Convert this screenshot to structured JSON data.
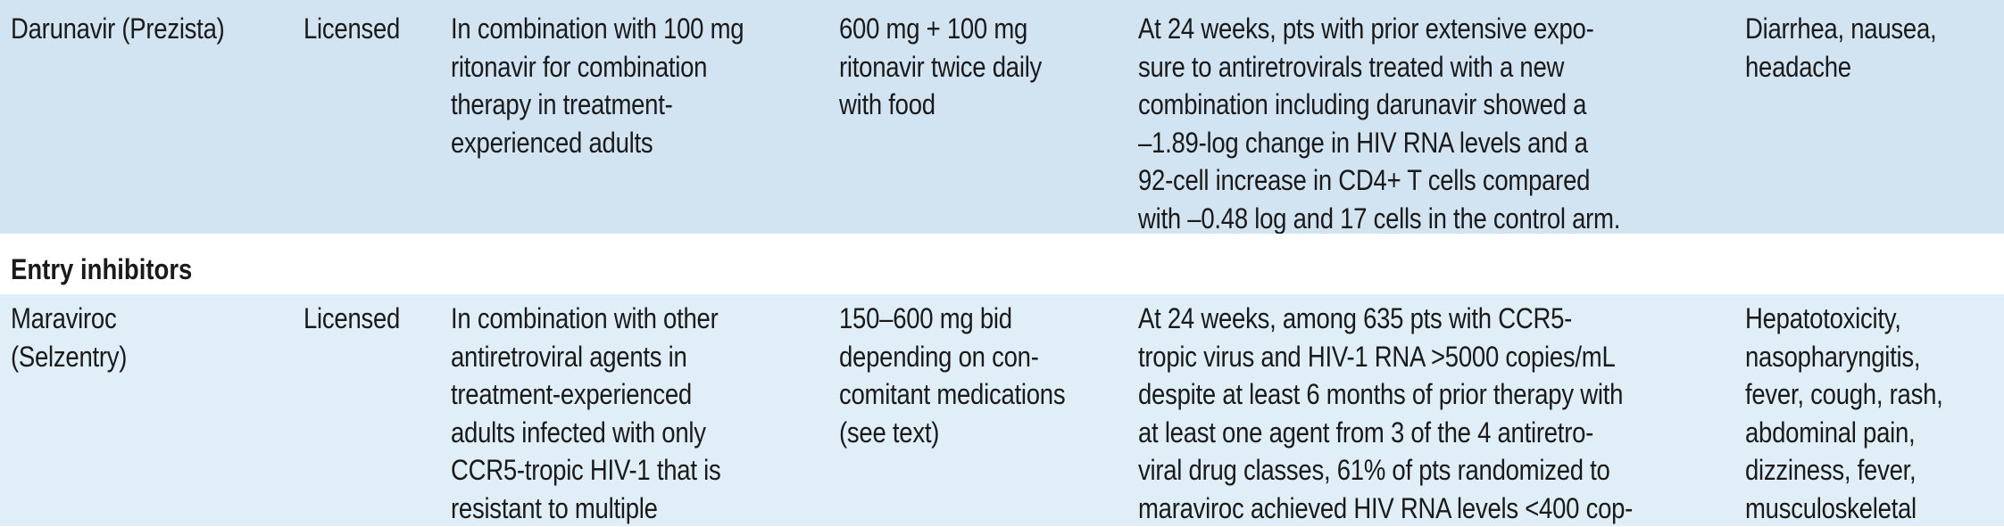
{
  "rows": [
    {
      "drug": "Darunavir (Prezista)",
      "status": "Licensed",
      "indication": "In combination with 100 mg\nritonavir for combination\ntherapy in treatment-\nexperienced adults",
      "dosage": "600 mg + 100 mg\nritonavir twice daily\nwith food",
      "efficacy": "At 24 weeks, pts with prior extensive expo-\nsure to antiretrovirals treated with a new\ncombination including darunavir showed a\n–1.89-log change in HIV RNA levels and a\n92-cell increase in CD4+ T cells compared\nwith –0.48 log and 17 cells in the control arm.",
      "adverse_effects": "Diarrhea, nausea,\nheadache"
    },
    {
      "drug": "Maraviroc\n(Selzentry)",
      "status": "Licensed",
      "indication": "In combination with other\nantiretroviral agents in\ntreatment-experienced\nadults infected with only\nCCR5-tropic HIV-1 that is\nresistant to multiple",
      "dosage": "150–600 mg bid\ndepending on con-\ncomitant medications\n(see text)",
      "efficacy": "At 24 weeks, among 635 pts with CCR5-\ntropic virus and HIV-1 RNA >5000 copies/mL\ndespite at least 6 months of prior therapy with\nat least one agent from 3 of the 4 antiretro-\nviral drug classes, 61% of pts randomized to\nmaraviroc achieved HIV RNA levels <400 cop-",
      "adverse_effects": "Hepatotoxicity,\nnasopharyngitis,\nfever, cough, rash,\nabdominal pain,\ndizziness, fever,\nmusculoskeletal"
    }
  ],
  "section": {
    "title": "Entry inhibitors"
  },
  "colors": {
    "row_a_bg": "#d2e4f2",
    "row_b_bg": "#dfeef7",
    "text": "#1a1a1a"
  }
}
